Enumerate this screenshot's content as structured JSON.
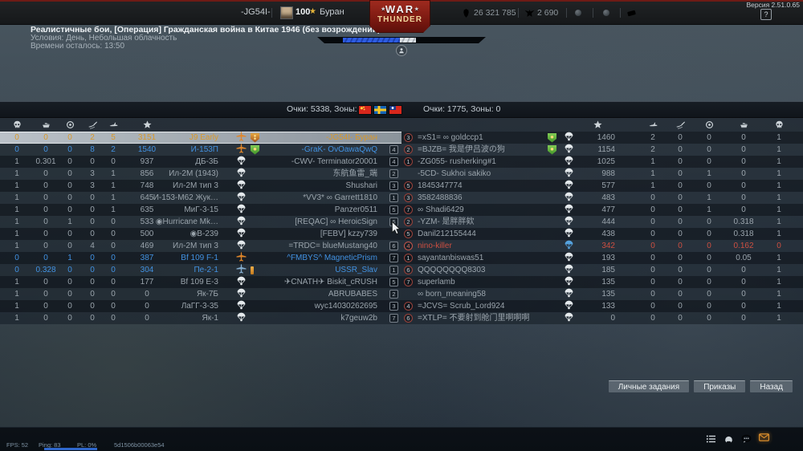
{
  "version": "Версия 2.51.0.65",
  "top_bar": {
    "clan_tag": "-JG54I-",
    "player_level": "100",
    "player_name": "Буран",
    "silver_lions": "26 321 785",
    "golden_eagles": "2 690",
    "help_label": "?"
  },
  "logo": {
    "line1": "WAR",
    "line2": "THUNDER"
  },
  "mission": {
    "title": "Реалистичные бои, [Операция] Гражданская война в Китае 1946 (без возрождений)",
    "conditions": "Условия: День, Небольшая облачность",
    "time_left": "Времени осталось: 13:50"
  },
  "scoreboard": {
    "left_score": "Очки: 5338, Зоны: 0",
    "right_score": "Очки: 1775, Зоны: 0",
    "flags": [
      "flag-china",
      "flag-sweden",
      "flag-taiwan"
    ],
    "left_columns": [
      "deaths",
      "ground-kills",
      "assists",
      "air-kills",
      "vehicles",
      "score"
    ],
    "right_columns": [
      "score",
      "vehicles",
      "air-kills",
      "assists",
      "ground-kills",
      "deaths"
    ]
  },
  "left_team": {
    "rows": [
      {
        "stats": [
          "0",
          "0",
          "0",
          "2",
          "5"
        ],
        "score": "3151",
        "vehicle": "J9 Early",
        "icon": "plane-orange",
        "badge": "orange",
        "name": "-JG54I- Буран",
        "squad": "",
        "state": "self"
      },
      {
        "stats": [
          "0",
          "0",
          "0",
          "8",
          "2"
        ],
        "score": "1540",
        "vehicle": "И-153П",
        "icon": "plane-orange",
        "badge": "green",
        "name": "-GraK- OvOawaQwQ",
        "squad": "4",
        "state": "ally"
      },
      {
        "stats": [
          "1",
          "0.301",
          "0",
          "0",
          "0"
        ],
        "score": "937",
        "vehicle": "ДБ-3Б",
        "icon": "para",
        "badge": "",
        "name": "-CWV- Terminator20001",
        "squad": "4",
        "state": "dead"
      },
      {
        "stats": [
          "1",
          "0",
          "0",
          "3",
          "1"
        ],
        "score": "856",
        "vehicle": "Ил-2М (1943)",
        "icon": "para",
        "badge": "",
        "name": "东航鱼雷_端",
        "squad": "2",
        "state": "dead"
      },
      {
        "stats": [
          "1",
          "0",
          "0",
          "3",
          "1"
        ],
        "score": "748",
        "vehicle": "Ил-2М тип 3",
        "icon": "para",
        "badge": "",
        "name": "Shushari",
        "squad": "3",
        "state": "dead"
      },
      {
        "stats": [
          "1",
          "0",
          "0",
          "0",
          "1"
        ],
        "score": "645",
        "vehicle": "И-153-М62 Жук…",
        "icon": "para",
        "badge": "",
        "name": "*VV3* ∞ Garrett1810",
        "squad": "1",
        "state": "dead"
      },
      {
        "stats": [
          "1",
          "0",
          "0",
          "0",
          "1"
        ],
        "score": "635",
        "vehicle": "МиГ-3-15",
        "icon": "para",
        "badge": "",
        "name": "Panzer0511",
        "squad": "5",
        "state": "dead"
      },
      {
        "stats": [
          "1",
          "0",
          "1",
          "0",
          "0"
        ],
        "score": "533",
        "vehicle": "◉Hurricane Mk…",
        "icon": "para",
        "badge": "",
        "name": "[REQAC] ∞ HeroicSign",
        "squad": "6",
        "state": "dead"
      },
      {
        "stats": [
          "1",
          "0",
          "0",
          "0",
          "0"
        ],
        "score": "500",
        "vehicle": "◉B-239",
        "icon": "para",
        "badge": "",
        "name": "[FEBV] kzzy739",
        "squad": "",
        "state": "dead"
      },
      {
        "stats": [
          "1",
          "0",
          "0",
          "4",
          "0"
        ],
        "score": "469",
        "vehicle": "Ил-2М тип 3",
        "icon": "para",
        "badge": "",
        "name": "=TRDC= blueMustang40",
        "squad": "6",
        "state": "dead"
      },
      {
        "stats": [
          "0",
          "0",
          "1",
          "0",
          "0"
        ],
        "score": "387",
        "vehicle": "Bf 109 F-1",
        "icon": "plane-orange",
        "badge": "",
        "name": "^FMBYS^ MagneticPrism",
        "squad": "7",
        "state": "ally"
      },
      {
        "stats": [
          "0",
          "0.328",
          "0",
          "0",
          "0"
        ],
        "score": "304",
        "vehicle": "Пе-2-1",
        "icon": "plane-blue",
        "badge": "medal",
        "name": "USSR_Slav",
        "squad": "1",
        "state": "ally"
      },
      {
        "stats": [
          "1",
          "0",
          "0",
          "0",
          "0"
        ],
        "score": "177",
        "vehicle": "Bf 109 E-3",
        "icon": "para",
        "badge": "",
        "name": "✈CNATH✈ Biskit_cRUSH",
        "squad": "5",
        "state": "dead"
      },
      {
        "stats": [
          "1",
          "0",
          "0",
          "0",
          "0"
        ],
        "score": "0",
        "vehicle": "Як-7Б",
        "icon": "para",
        "badge": "",
        "name": "ABRUBABES",
        "squad": "2",
        "state": "dead"
      },
      {
        "stats": [
          "1",
          "0",
          "0",
          "0",
          "0"
        ],
        "score": "0",
        "vehicle": "ЛаГГ-3-35",
        "icon": "para",
        "badge": "",
        "name": "wyc14030262695",
        "squad": "3",
        "state": "dead"
      },
      {
        "stats": [
          "1",
          "0",
          "0",
          "0",
          "0"
        ],
        "score": "0",
        "vehicle": "Як-1",
        "icon": "para",
        "badge": "",
        "name": "k7geuw2b",
        "squad": "7",
        "state": "dead"
      }
    ]
  },
  "right_team": {
    "rows": [
      {
        "squad": "3",
        "name": "=xS1= ∞ goldccp1",
        "badge": "green",
        "icon": "para",
        "score": "1460",
        "stats": [
          "2",
          "0",
          "0",
          "0",
          "1"
        ],
        "state": "dead"
      },
      {
        "squad": "2",
        "name": "=BJZB= 我是伊吕波の狗",
        "badge": "green",
        "icon": "para",
        "score": "1154",
        "stats": [
          "2",
          "0",
          "0",
          "0",
          "1"
        ],
        "state": "dead"
      },
      {
        "squad": "1",
        "name": "-ZG055- rusherking#1",
        "badge": "",
        "icon": "para",
        "score": "1025",
        "stats": [
          "1",
          "0",
          "0",
          "0",
          "1"
        ],
        "state": "dead"
      },
      {
        "squad": "",
        "name": "-5CD- Sukhoi sakiko",
        "badge": "",
        "icon": "para",
        "score": "988",
        "stats": [
          "1",
          "0",
          "1",
          "0",
          "1"
        ],
        "state": "dead"
      },
      {
        "squad": "5",
        "name": "1845347774",
        "badge": "",
        "icon": "para",
        "score": "577",
        "stats": [
          "1",
          "0",
          "0",
          "0",
          "1"
        ],
        "state": "dead"
      },
      {
        "squad": "3",
        "name": "3582488836",
        "badge": "",
        "icon": "para",
        "score": "483",
        "stats": [
          "0",
          "0",
          "1",
          "0",
          "1"
        ],
        "state": "dead"
      },
      {
        "squad": "7",
        "name": "∞ Shadi6429",
        "badge": "",
        "icon": "para",
        "score": "477",
        "stats": [
          "0",
          "0",
          "1",
          "0",
          "1"
        ],
        "state": "dead"
      },
      {
        "squad": "2",
        "name": "-YZM- 是胖胖欸",
        "badge": "",
        "icon": "para",
        "score": "444",
        "stats": [
          "0",
          "0",
          "0",
          "0.318",
          "1"
        ],
        "state": "dead"
      },
      {
        "squad": "5",
        "name": "Danil212155444",
        "badge": "",
        "icon": "para",
        "score": "438",
        "stats": [
          "0",
          "0",
          "0",
          "0.318",
          "1"
        ],
        "state": "dead"
      },
      {
        "squad": "4",
        "name": "nino-killer",
        "badge": "",
        "icon": "para-blue",
        "score": "342",
        "stats": [
          "0",
          "0",
          "0",
          "0.162",
          "0"
        ],
        "state": "red"
      },
      {
        "squad": "1",
        "name": "sayantanbiswas51",
        "badge": "",
        "icon": "para",
        "score": "193",
        "stats": [
          "0",
          "0",
          "0",
          "0.05",
          "1"
        ],
        "state": "dead"
      },
      {
        "squad": "6",
        "name": "QQQQQQQQ8303",
        "badge": "",
        "icon": "para",
        "score": "185",
        "stats": [
          "0",
          "0",
          "0",
          "0",
          "1"
        ],
        "state": "dead"
      },
      {
        "squad": "7",
        "name": "superlamb",
        "badge": "",
        "icon": "para",
        "score": "135",
        "stats": [
          "0",
          "0",
          "0",
          "0",
          "1"
        ],
        "state": "dead"
      },
      {
        "squad": "",
        "name": "∞ born_meaning58",
        "badge": "",
        "icon": "para",
        "score": "135",
        "stats": [
          "0",
          "0",
          "0",
          "0",
          "1"
        ],
        "state": "dead"
      },
      {
        "squad": "4",
        "name": "=JCVS= Scrub_Lord924",
        "badge": "",
        "icon": "para",
        "score": "133",
        "stats": [
          "0",
          "0",
          "0",
          "0",
          "1"
        ],
        "state": "dead"
      },
      {
        "squad": "6",
        "name": "=XTLP= 不要射到舱门里啊啊啊",
        "badge": "",
        "icon": "para",
        "score": "0",
        "stats": [
          "0",
          "0",
          "0",
          "0",
          "1"
        ],
        "state": "dead"
      }
    ]
  },
  "action_buttons": [
    "Личные задания",
    "Приказы",
    "Назад"
  ],
  "status_bar": {
    "fps": "FPS: 52",
    "ping": "Ping: 83",
    "pl": "PL: 0%",
    "session": "5d1506b00063e54"
  },
  "colors": {
    "self": "#d9992b",
    "ally": "#4292e2",
    "dead": "#9aa4ac",
    "enemy_red": "#cd4f41",
    "progress_blue": "#2d5ce0"
  }
}
